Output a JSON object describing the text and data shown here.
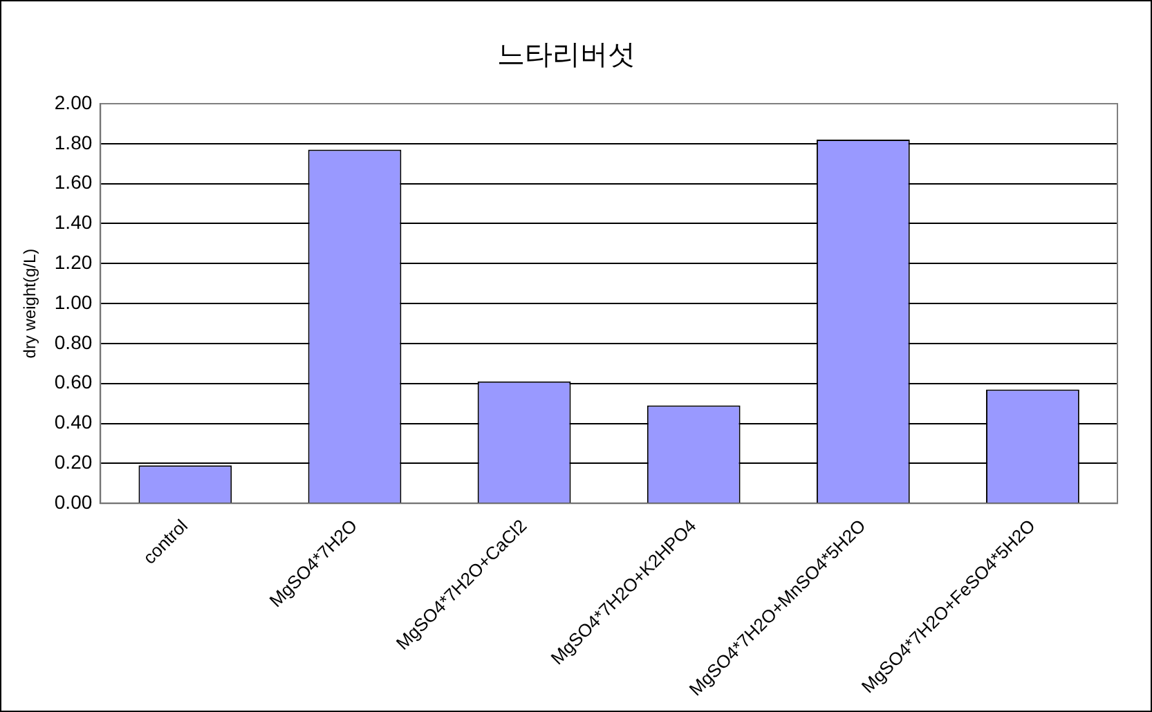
{
  "chart_data": {
    "type": "bar",
    "title": "느타리버섯",
    "ylabel": "dry weight(g/L)",
    "categories": [
      "control",
      "MgSO4*7H2O",
      "MgSO4*7H2O+CaCl2",
      "MgSO4*7H2O+K2HPO4",
      "MgSO4*7H2O+MnSO4*5H2O",
      "MgSO4*7H2O+FeSO4*5H2O"
    ],
    "values": [
      0.19,
      1.77,
      0.61,
      0.49,
      1.82,
      0.57
    ],
    "color": "#9999ff",
    "ylim": [
      0,
      2
    ],
    "yticks": [
      {
        "value": 0,
        "label": "0.00"
      },
      {
        "value": 0.2,
        "label": "0.20"
      },
      {
        "value": 0.4,
        "label": "0.40"
      },
      {
        "value": 0.6,
        "label": "0.60"
      },
      {
        "value": 0.8,
        "label": "0.80"
      },
      {
        "value": 1,
        "label": "1.00"
      },
      {
        "value": 1.2,
        "label": "1.20"
      },
      {
        "value": 1.4,
        "label": "1.40"
      },
      {
        "value": 1.6,
        "label": "1.60"
      },
      {
        "value": 1.8,
        "label": "1.80"
      },
      {
        "value": 2,
        "label": "2.00"
      }
    ],
    "grid": "y",
    "legend": false
  }
}
